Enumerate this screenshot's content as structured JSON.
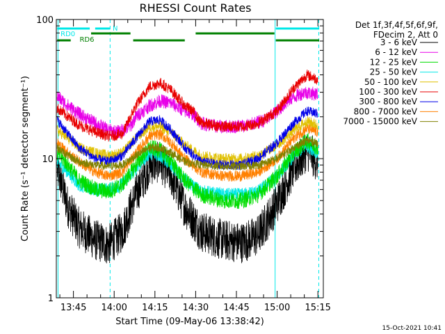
{
  "chart_data": {
    "type": "line",
    "title": "RHESSI Count Rates",
    "xlabel": "Start Time (09-May-06 13:38:42)",
    "ylabel": "Count Rate (s⁻¹ detector segment⁻¹)",
    "y_scale": "log",
    "ylim": [
      1,
      100
    ],
    "y_ticks": [
      {
        "value": 1,
        "label": "1"
      },
      {
        "value": 10,
        "label": "10"
      },
      {
        "value": 100,
        "label": "100"
      }
    ],
    "xlim": [
      "13:38:42",
      "15:17:00"
    ],
    "x_ticks": [
      {
        "time": "13:45",
        "label": "13:45"
      },
      {
        "time": "14:00",
        "label": "14:00"
      },
      {
        "time": "14:15",
        "label": "14:15"
      },
      {
        "time": "14:30",
        "label": "14:30"
      },
      {
        "time": "14:45",
        "label": "14:45"
      },
      {
        "time": "15:00",
        "label": "15:00"
      },
      {
        "time": "15:15",
        "label": "15:15"
      }
    ],
    "legend_placement": "right",
    "legend_header": [
      "Det 1f,3f,4f,5f,6f,9f,",
      "FDecim 2, Att 0"
    ],
    "timestamp": "15-Oct-2021 10:41",
    "series": [
      {
        "name": "3 - 6 keV",
        "color": "#000000",
        "noise": 0.3,
        "points": [
          [
            "13:39",
            8.5
          ],
          [
            "13:43",
            4.5
          ],
          [
            "13:47",
            3.2
          ],
          [
            "13:53",
            2.6
          ],
          [
            "13:58",
            2.4
          ],
          [
            "14:03",
            3.0
          ],
          [
            "14:08",
            5.5
          ],
          [
            "14:13",
            9.0
          ],
          [
            "14:17",
            9.5
          ],
          [
            "14:21",
            7.5
          ],
          [
            "14:26",
            4.5
          ],
          [
            "14:32",
            3.0
          ],
          [
            "14:40",
            2.6
          ],
          [
            "14:47",
            2.5
          ],
          [
            "14:53",
            2.8
          ],
          [
            "15:00",
            4.8
          ],
          [
            "15:06",
            8.5
          ],
          [
            "15:11",
            11.5
          ],
          [
            "15:15",
            9.5
          ]
        ]
      },
      {
        "name": "6 - 12 keV",
        "color": "#e800e8",
        "noise": 0.1,
        "points": [
          [
            "13:39",
            28
          ],
          [
            "13:43",
            24
          ],
          [
            "13:47",
            21
          ],
          [
            "13:53",
            18
          ],
          [
            "13:58",
            16
          ],
          [
            "14:01",
            15.5
          ],
          [
            "14:03",
            16
          ],
          [
            "14:06",
            17
          ],
          [
            "14:08",
            20
          ],
          [
            "14:13",
            24
          ],
          [
            "14:17",
            26
          ],
          [
            "14:21",
            25
          ],
          [
            "14:26",
            22
          ],
          [
            "14:29",
            21
          ],
          [
            "14:32",
            18
          ],
          [
            "14:38",
            17
          ],
          [
            "14:44",
            17
          ],
          [
            "14:50",
            17.5
          ],
          [
            "14:56",
            19
          ],
          [
            "15:00",
            22
          ],
          [
            "15:05",
            27
          ],
          [
            "15:10",
            30
          ],
          [
            "15:15",
            29
          ]
        ]
      },
      {
        "name": "12 - 25 keV",
        "color": "#00dd00",
        "noise": 0.12,
        "points": [
          [
            "13:39",
            11
          ],
          [
            "13:43",
            9
          ],
          [
            "13:47",
            7
          ],
          [
            "13:53",
            6
          ],
          [
            "13:58",
            5.8
          ],
          [
            "14:03",
            6.5
          ],
          [
            "14:08",
            9
          ],
          [
            "14:13",
            12
          ],
          [
            "14:17",
            11.5
          ],
          [
            "14:21",
            9.5
          ],
          [
            "14:26",
            7
          ],
          [
            "14:32",
            5.5
          ],
          [
            "14:40",
            5.0
          ],
          [
            "14:47",
            5.0
          ],
          [
            "14:53",
            5.5
          ],
          [
            "15:00",
            7.5
          ],
          [
            "15:06",
            11
          ],
          [
            "15:11",
            13.5
          ],
          [
            "15:15",
            12
          ]
        ]
      },
      {
        "name": "25 - 50 keV",
        "color": "#00e8e8",
        "noise": 0.1,
        "points": [
          [
            "13:39",
            9.5
          ],
          [
            "13:43",
            8
          ],
          [
            "13:47",
            6.5
          ],
          [
            "13:53",
            6
          ],
          [
            "13:58",
            6
          ],
          [
            "14:03",
            6.5
          ],
          [
            "14:08",
            8.5
          ],
          [
            "14:13",
            11
          ],
          [
            "14:17",
            10.5
          ],
          [
            "14:21",
            9
          ],
          [
            "14:26",
            7
          ],
          [
            "14:32",
            5.8
          ],
          [
            "14:40",
            5.5
          ],
          [
            "14:47",
            5.5
          ],
          [
            "14:53",
            5.8
          ],
          [
            "15:00",
            7.5
          ],
          [
            "15:06",
            10.5
          ],
          [
            "15:11",
            12.5
          ],
          [
            "15:15",
            11
          ]
        ]
      },
      {
        "name": "50 - 100 keV",
        "color": "#e0c000",
        "noise": 0.08,
        "points": [
          [
            "13:39",
            16
          ],
          [
            "13:43",
            14
          ],
          [
            "13:47",
            12
          ],
          [
            "13:53",
            11
          ],
          [
            "13:58",
            10.5
          ],
          [
            "14:03",
            11
          ],
          [
            "14:08",
            14
          ],
          [
            "14:13",
            17
          ],
          [
            "14:17",
            17
          ],
          [
            "14:21",
            15.5
          ],
          [
            "14:26",
            12.5
          ],
          [
            "14:32",
            10.5
          ],
          [
            "14:40",
            10
          ],
          [
            "14:47",
            10
          ],
          [
            "14:53",
            10.5
          ],
          [
            "15:00",
            12.5
          ],
          [
            "15:06",
            16
          ],
          [
            "15:11",
            18.5
          ],
          [
            "15:15",
            17.5
          ]
        ]
      },
      {
        "name": "100 - 300 keV",
        "color": "#e80000",
        "noise": 0.08,
        "points": [
          [
            "13:39",
            23
          ],
          [
            "13:43",
            20
          ],
          [
            "13:47",
            17.5
          ],
          [
            "13:53",
            15.5
          ],
          [
            "13:58",
            14.5
          ],
          [
            "14:03",
            15
          ],
          [
            "14:08",
            24
          ],
          [
            "14:13",
            33
          ],
          [
            "14:17",
            35
          ],
          [
            "14:21",
            31
          ],
          [
            "14:26",
            24
          ],
          [
            "14:29",
            22
          ],
          [
            "14:32",
            18
          ],
          [
            "14:40",
            17
          ],
          [
            "14:47",
            17
          ],
          [
            "14:53",
            18
          ],
          [
            "15:00",
            22
          ],
          [
            "15:06",
            32
          ],
          [
            "15:11",
            40
          ],
          [
            "15:15",
            37
          ]
        ]
      },
      {
        "name": "300 - 800 keV",
        "color": "#0000e8",
        "noise": 0.07,
        "points": [
          [
            "13:39",
            19
          ],
          [
            "13:43",
            15
          ],
          [
            "13:47",
            12
          ],
          [
            "13:53",
            10
          ],
          [
            "13:58",
            9.5
          ],
          [
            "14:03",
            10.5
          ],
          [
            "14:08",
            14
          ],
          [
            "14:13",
            18.5
          ],
          [
            "14:17",
            19
          ],
          [
            "14:21",
            16
          ],
          [
            "14:26",
            12
          ],
          [
            "14:32",
            9.5
          ],
          [
            "14:40",
            9
          ],
          [
            "14:47",
            9
          ],
          [
            "14:53",
            10
          ],
          [
            "15:00",
            13
          ],
          [
            "15:06",
            18
          ],
          [
            "15:11",
            22
          ],
          [
            "15:15",
            21
          ]
        ]
      },
      {
        "name": "800 - 7000 keV",
        "color": "#ff8000",
        "noise": 0.08,
        "points": [
          [
            "13:39",
            13
          ],
          [
            "13:43",
            11
          ],
          [
            "13:47",
            9.5
          ],
          [
            "13:53",
            8
          ],
          [
            "13:58",
            7.5
          ],
          [
            "14:03",
            8
          ],
          [
            "14:08",
            11
          ],
          [
            "14:13",
            14.5
          ],
          [
            "14:17",
            15
          ],
          [
            "14:21",
            13
          ],
          [
            "14:26",
            10
          ],
          [
            "14:32",
            8
          ],
          [
            "14:40",
            7.5
          ],
          [
            "14:47",
            7.5
          ],
          [
            "14:53",
            8
          ],
          [
            "15:00",
            10
          ],
          [
            "15:06",
            14
          ],
          [
            "15:11",
            16.5
          ],
          [
            "15:15",
            15.5
          ]
        ]
      },
      {
        "name": "7000 - 15000 keV",
        "color": "#808000",
        "noise": 0.06,
        "points": [
          [
            "13:39",
            12
          ],
          [
            "13:43",
            10.5
          ],
          [
            "13:47",
            9.5
          ],
          [
            "13:53",
            9
          ],
          [
            "13:58",
            8.8
          ],
          [
            "14:03",
            9
          ],
          [
            "14:08",
            10.5
          ],
          [
            "14:13",
            12
          ],
          [
            "14:17",
            12
          ],
          [
            "14:21",
            11
          ],
          [
            "14:26",
            9.5
          ],
          [
            "14:32",
            9
          ],
          [
            "14:40",
            8.8
          ],
          [
            "14:47",
            8.8
          ],
          [
            "14:53",
            9
          ],
          [
            "15:00",
            10
          ],
          [
            "15:06",
            12
          ],
          [
            "15:11",
            13.5
          ],
          [
            "15:15",
            13
          ]
        ]
      }
    ],
    "attenuator_bars": [
      {
        "label": "RD0",
        "color": "#00e8e8",
        "level": "upper",
        "segments": [
          [
            "13:39",
            "13:51"
          ],
          [
            "13:53",
            "13:58:30"
          ],
          [
            "14:59:30",
            "15:15:30"
          ]
        ]
      },
      {
        "label": "RD6",
        "color": "#008000",
        "level": "lower",
        "segments": [
          [
            "13:39",
            "13:44"
          ],
          [
            "14:07",
            "14:26"
          ],
          [
            "14:59:30",
            "15:15:30"
          ]
        ]
      },
      {
        "label": "",
        "color": "#008000",
        "level": "upper",
        "segments": [
          [
            "13:51:30",
            "14:06"
          ],
          [
            "14:30",
            "14:59"
          ]
        ]
      }
    ],
    "bar_labels": [
      {
        "text": "RD0",
        "color": "#00e8e8",
        "time": "13:39:30",
        "level": "upper"
      },
      {
        "text": "N",
        "color": "#00e8e8",
        "time": "13:58:40",
        "level": "upper"
      },
      {
        "text": "RD6",
        "color": "#008000",
        "time": "13:46:30",
        "level": "lower"
      }
    ],
    "vertical_lines": [
      {
        "time": "13:39:20",
        "color": "#00e8e8",
        "style": "solid"
      },
      {
        "time": "13:58:30",
        "color": "#00e8e8",
        "style": "dashed"
      },
      {
        "time": "14:59:15",
        "color": "#00e8e8",
        "style": "solid"
      },
      {
        "time": "15:15:20",
        "color": "#00e8e8",
        "style": "dashed"
      }
    ]
  }
}
